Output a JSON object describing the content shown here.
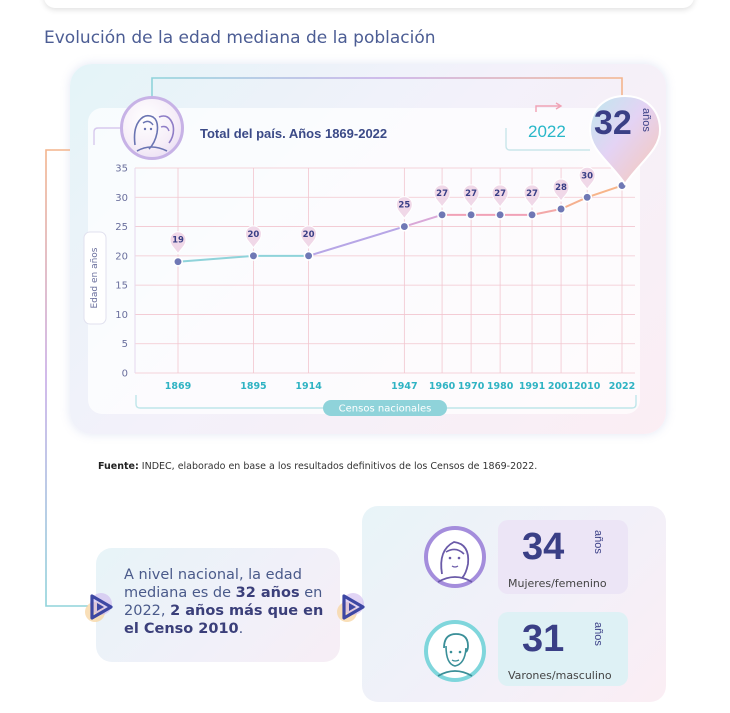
{
  "page_title": "Evolución de la edad mediana de la población",
  "chart_subtitle": "Total del país. Años 1869-2022",
  "highlight": {
    "year": "2022",
    "value": "32",
    "unit": "años"
  },
  "chart_data": {
    "type": "line",
    "title": "Total del país. Años 1869-2022",
    "xlabel": "Censos nacionales",
    "ylabel": "Edad en años",
    "categories": [
      "1869",
      "1895",
      "1914",
      "1947",
      "1960",
      "1970",
      "1980",
      "1991",
      "2001",
      "2010",
      "2022"
    ],
    "x": [
      1869,
      1895,
      1914,
      1947,
      1960,
      1970,
      1980,
      1991,
      2001,
      2010,
      2022
    ],
    "values": [
      19,
      20,
      20,
      25,
      27,
      27,
      27,
      27,
      28,
      30,
      32
    ],
    "labels": [
      "19",
      "20",
      "20",
      "25",
      "27",
      "27",
      "27",
      "27",
      "28",
      "30"
    ],
    "yticks": [
      "0",
      "5",
      "10",
      "15",
      "20",
      "25",
      "30",
      "35"
    ],
    "ylim": [
      0,
      35
    ],
    "grid": true,
    "colors": [
      "#7fcfd6",
      "#b7a6e6",
      "#f1a2b7",
      "#f7b58a"
    ]
  },
  "fuente": {
    "label": "Fuente:",
    "text": " INDEC, elaborado en base a los resultados definitivos de los Censos de 1869-2022."
  },
  "summary": {
    "p1": "A nivel nacional, la edad mediana es de ",
    "b1": "32 años",
    "p2": " en 2022, ",
    "b2": "2 años más que en el Censo 2010",
    "p3": "."
  },
  "women": {
    "value": "34",
    "unit": "años",
    "label": "Mujeres/femenino"
  },
  "men": {
    "value": "31",
    "unit": "años",
    "label": "Varones/masculino"
  }
}
